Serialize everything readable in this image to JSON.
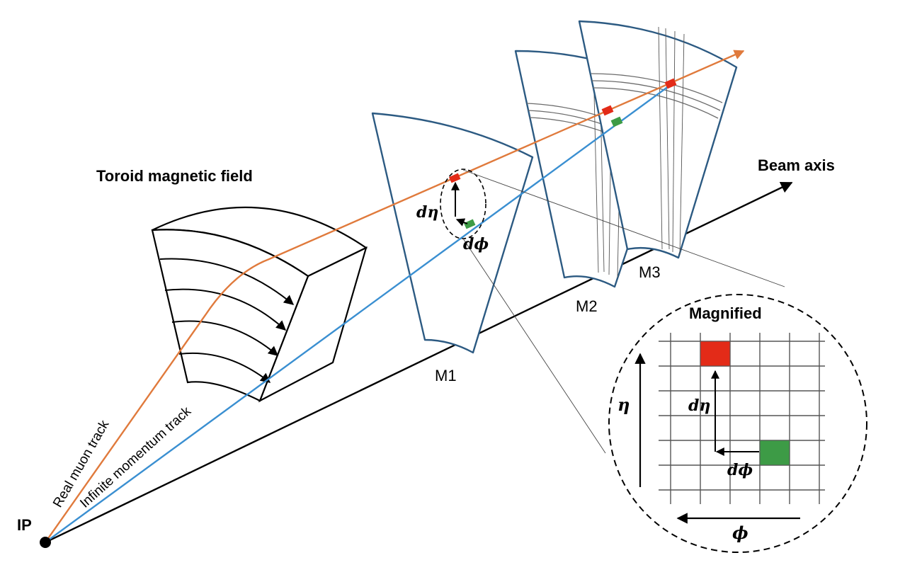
{
  "labels": {
    "toroid": "Toroid magnetic field",
    "beam_axis": "Beam axis",
    "ip": "IP",
    "m1": "M1",
    "m2": "M2",
    "m3": "M3",
    "magnified": "Magnified",
    "real_muon_track": "Real muon track",
    "infinite_momentum_track": "Infinite momentum track",
    "d_eta": "dη",
    "d_phi": "dϕ",
    "eta": "η",
    "phi": "ϕ"
  },
  "colors": {
    "real_track": "#e07a3c",
    "infinite_track": "#3a8fd1",
    "station_edge": "#2c5a82",
    "hit_real": "#e32b18",
    "hit_infinite": "#3d9b46",
    "axis": "#000000"
  }
}
